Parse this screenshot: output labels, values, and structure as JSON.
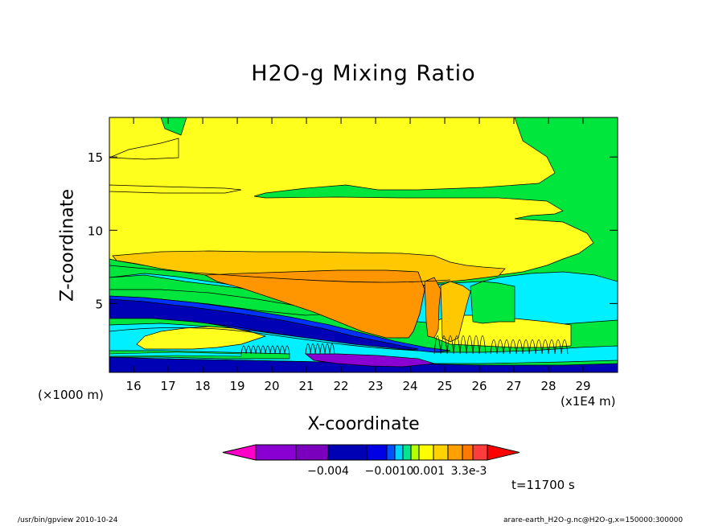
{
  "chart_data": {
    "type": "heatmap",
    "title": "H2O-g Mixing Ratio",
    "xlabel": "X-coordinate",
    "ylabel": "Z-coordinate",
    "x_unit_left": "(×1000 m)",
    "x_unit_right": "(x1E4 m)",
    "x_ticks": [
      "16",
      "17",
      "18",
      "19",
      "20",
      "21",
      "22",
      "23",
      "24",
      "25",
      "26",
      "27",
      "28",
      "29"
    ],
    "y_ticks": [
      "5",
      "10",
      "15"
    ],
    "xlim": [
      15.3,
      30.0
    ],
    "ylim": [
      0.3,
      17.7
    ],
    "colorbar": {
      "labels": [
        "−0.004",
        "−0.0010",
        "0.001",
        "3.3e-3"
      ],
      "colors": [
        "#ff00c8",
        "#8a00d2",
        "#7a00bd",
        "#0000b4",
        "#0000e6",
        "#0050ff",
        "#00d2ff",
        "#00e68c",
        "#b4ff00",
        "#ffff00",
        "#ffd200",
        "#ffa000",
        "#ff7800",
        "#ff3c3c",
        "#ff0000"
      ]
    },
    "levels": {
      "purple": "#8a00d2",
      "dark_blue": "#0000b4",
      "blue": "#0032ff",
      "cyan": "#00f0ff",
      "green": "#00e63c",
      "yellow": "#ffff1e",
      "light_orange": "#ffc800",
      "orange": "#ff9600"
    }
  },
  "annotations": {
    "time": "t=11700 s",
    "footer_left": "/usr/bin/gpview  2010-10-24",
    "footer_right": "arare-earth_H2O-g.nc@H2O-g,x=150000:300000"
  }
}
